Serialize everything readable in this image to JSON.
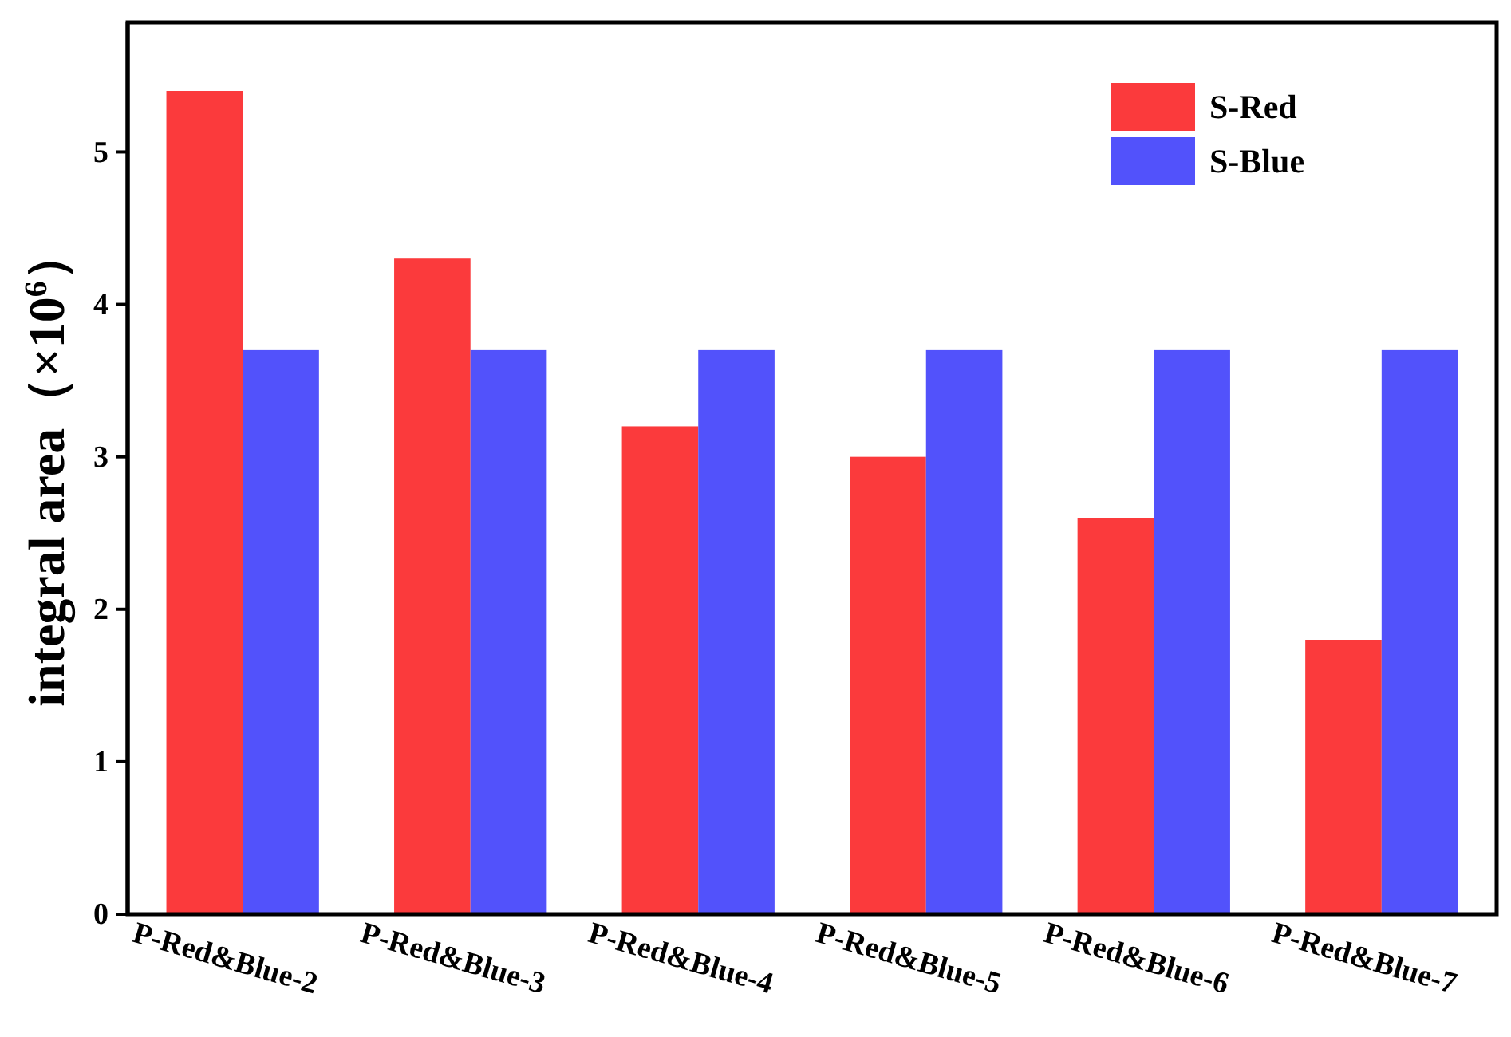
{
  "chart_data": {
    "type": "bar",
    "ylabel": "integral area（×10$^{6}$）",
    "categories": [
      "P-Red&Blue-2",
      "P-Red&Blue-3",
      "P-Red&Blue-4",
      "P-Red&Blue-5",
      "P-Red&Blue-6",
      "P-Red&Blue-7"
    ],
    "series": [
      {
        "name": "S-Red",
        "color": "#fb3a3c",
        "values": [
          5.4,
          4.3,
          3.2,
          3.0,
          2.6,
          1.8
        ]
      },
      {
        "name": "S-Blue",
        "color": "#5252fb",
        "values": [
          3.7,
          3.7,
          3.7,
          3.7,
          3.7,
          3.7
        ]
      }
    ],
    "ylim": [
      0,
      5.85
    ],
    "yticks": [
      0,
      1,
      2,
      3,
      4,
      5
    ],
    "grid": false,
    "legend": "top right"
  }
}
